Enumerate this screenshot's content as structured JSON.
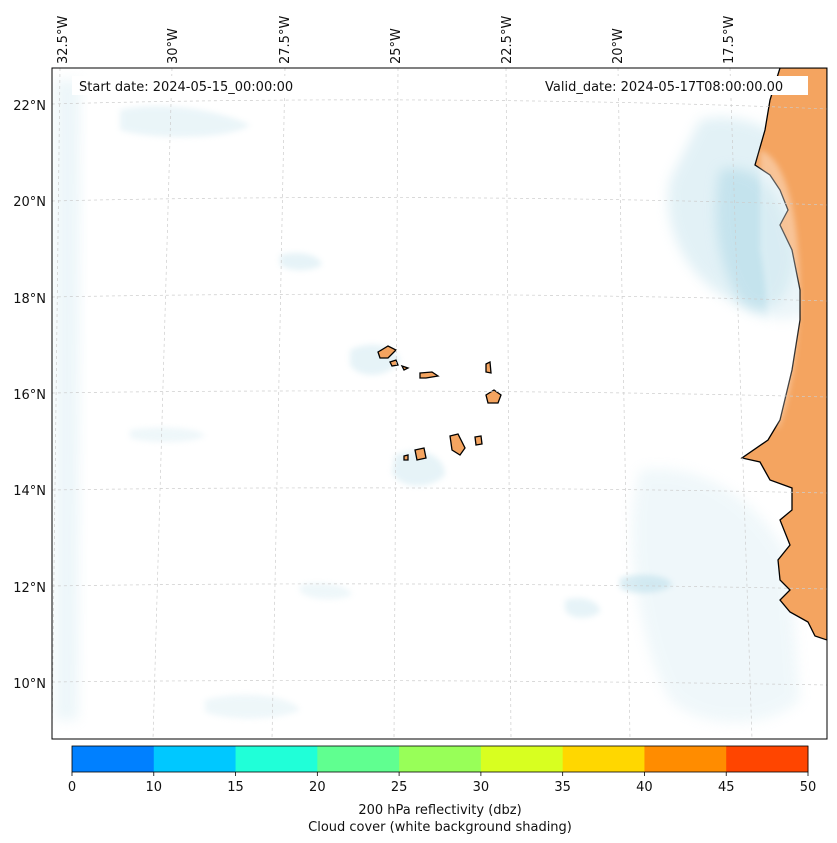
{
  "header": {
    "start_date": "Start date: 2024-05-15_00:00:00",
    "valid_date": "Valid_date: 2024-05-17T08:00:00.00"
  },
  "longitude_labels": [
    "32.5°W",
    "30°W",
    "27.5°W",
    "25°W",
    "22.5°W",
    "20°W",
    "17.5°W"
  ],
  "latitude_labels": [
    "22°N",
    "20°N",
    "18°N",
    "16°N",
    "14°N",
    "12°N",
    "10°N"
  ],
  "colorbar": {
    "ticks": [
      "0",
      "10",
      "15",
      "20",
      "25",
      "30",
      "35",
      "40",
      "45",
      "50"
    ],
    "colors": [
      "#0080ff",
      "#00c8ff",
      "#20ffd8",
      "#60ff90",
      "#98ff58",
      "#d8ff20",
      "#ffd700",
      "#ff8c00",
      "#ff4500"
    ],
    "label_line1": "200 hPa reflectivity (dbz)",
    "label_line2": "Cloud cover (white background shading)"
  },
  "style": {
    "land_color": "#f4a460",
    "cloud_color": "#add8e6",
    "grid_color": "#cccccc"
  }
}
